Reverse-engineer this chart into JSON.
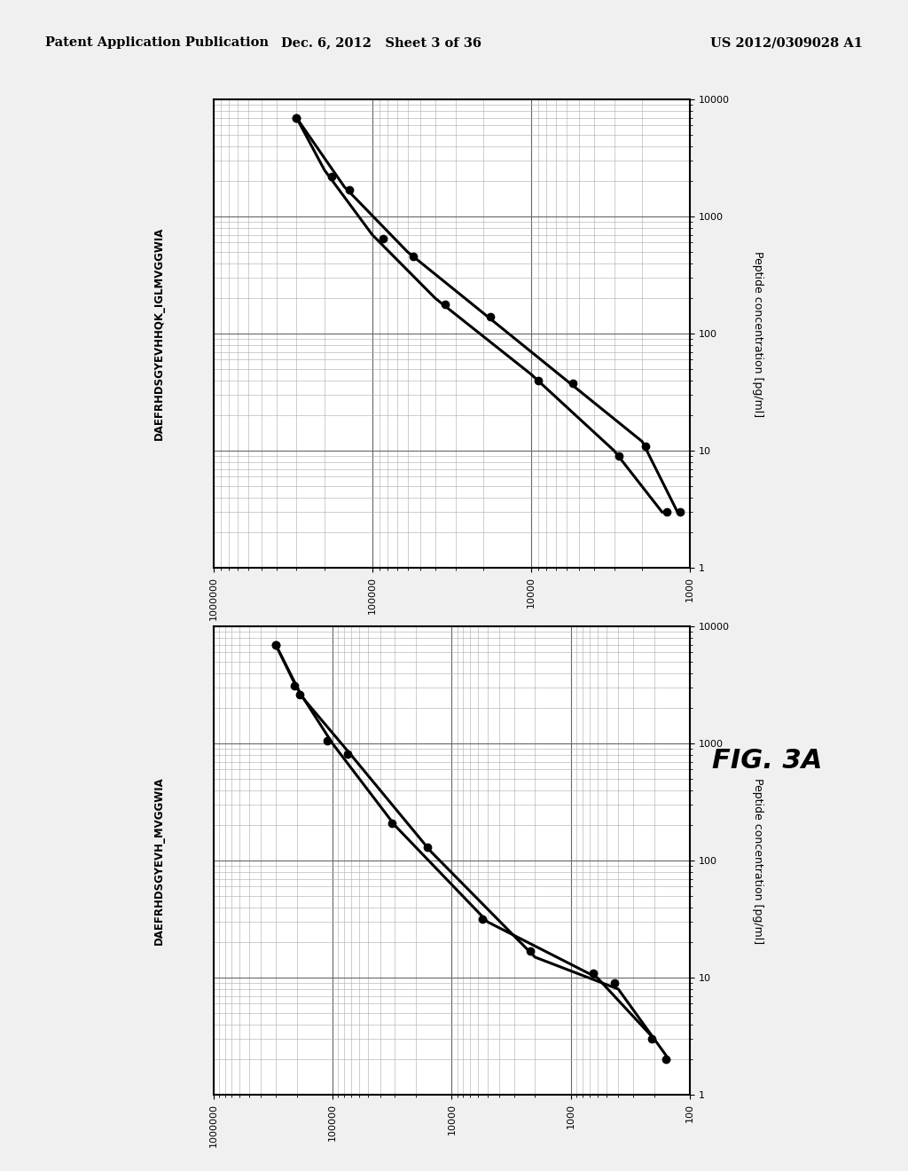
{
  "header_left": "Patent Application Publication",
  "header_mid": "Dec. 6, 2012   Sheet 3 of 36",
  "header_right": "US 2012/0309028 A1",
  "fig_label": "FIG. 3A",
  "plot1": {
    "left_label": "DAEFRHDSGYEVHHQK_IGLMVGGWIA",
    "right_label": "Peptide concentration [pg/ml]",
    "xlim_left": 1000000,
    "xlim_right": 1000,
    "ylim_bottom": 1,
    "ylim_top": 10000,
    "xticks": [
      1000000,
      100000,
      10000,
      1000
    ],
    "yticks": [
      1,
      10,
      100,
      1000,
      10000
    ],
    "line1_x": [
      300000,
      200000,
      100000,
      40000,
      10000,
      3000,
      1500
    ],
    "line1_y": [
      7000,
      2500,
      700,
      200,
      45,
      10,
      3
    ],
    "line2_x": [
      300000,
      150000,
      60000,
      20000,
      6000,
      2000,
      1200
    ],
    "line2_y": [
      7000,
      1800,
      500,
      150,
      40,
      12,
      3
    ],
    "dots1_x": [
      300000,
      180000,
      85000,
      35000,
      9000,
      2800,
      1400
    ],
    "dots1_y": [
      7000,
      2200,
      650,
      180,
      40,
      9,
      3
    ],
    "dots2_x": [
      300000,
      140000,
      55000,
      18000,
      5500,
      1900,
      1150
    ],
    "dots2_y": [
      7000,
      1700,
      460,
      140,
      38,
      11,
      3
    ]
  },
  "plot2": {
    "left_label": "DAEFRHDSGYEVH_MVGGWIA",
    "right_label": "Peptide concentration [pg/ml]",
    "xlim_left": 1000000,
    "xlim_right": 100,
    "ylim_bottom": 1,
    "ylim_top": 10000,
    "xticks": [
      1000000,
      100000,
      10000,
      1000,
      100
    ],
    "yticks": [
      1,
      10,
      100,
      1000,
      10000
    ],
    "line1_x": [
      300000,
      200000,
      100000,
      30000,
      5000,
      600,
      200
    ],
    "line1_y": [
      7000,
      3000,
      1000,
      200,
      30,
      10,
      3
    ],
    "line2_x": [
      300000,
      180000,
      70000,
      15000,
      2000,
      400,
      150
    ],
    "line2_y": [
      7000,
      2500,
      800,
      120,
      15,
      8,
      2
    ],
    "dots1_x": [
      300000,
      210000,
      110000,
      32000,
      5500,
      650,
      210
    ],
    "dots1_y": [
      7000,
      3100,
      1050,
      210,
      32,
      11,
      3
    ],
    "dots2_x": [
      300000,
      190000,
      75000,
      16000,
      2200,
      430,
      160
    ],
    "dots2_y": [
      7000,
      2600,
      820,
      130,
      17,
      9,
      2
    ]
  },
  "bg_color": "#f0f0f0",
  "plot_bg": "#ffffff",
  "line_color": "#000000",
  "dot_color": "#000000",
  "grid_major_color": "#666666",
  "grid_minor_color": "#aaaaaa"
}
